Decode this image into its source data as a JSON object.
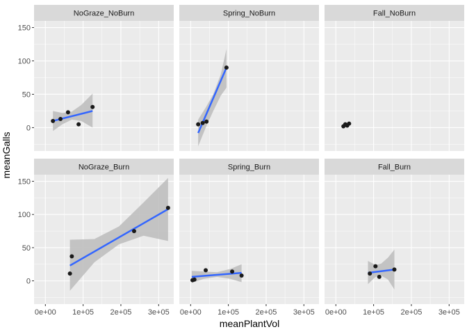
{
  "chart_data": {
    "type": "scatter",
    "facet": "grid",
    "xlabel": "meanPlantVol",
    "ylabel": "meanGalls",
    "xlim": [
      -30000,
      340000
    ],
    "ylim": [
      -35,
      160
    ],
    "x_ticks": [
      0,
      100000,
      200000,
      300000
    ],
    "x_tick_labels": [
      "0e+00",
      "1e+05",
      "2e+05",
      "3e+05"
    ],
    "y_ticks": [
      0,
      50,
      100,
      150
    ],
    "y_tick_labels": [
      "0",
      "50",
      "100",
      "150"
    ],
    "colors": {
      "panel_bg": "#ebebeb",
      "grid": "#ffffff",
      "strip_bg": "#d9d9d9",
      "point": "#1a1a1a",
      "line": "#3366ff",
      "ribbon": "#bfbfbf"
    },
    "panels": [
      {
        "title": "NoGraze_NoBurn",
        "points": [
          [
            20000,
            10
          ],
          [
            40000,
            13
          ],
          [
            60000,
            23
          ],
          [
            88000,
            5
          ],
          [
            125000,
            31
          ]
        ],
        "fit": [
          [
            20000,
            10
          ],
          [
            125000,
            25
          ]
        ],
        "band": [
          [
            20000,
            -5,
            25
          ],
          [
            45000,
            5,
            22
          ],
          [
            70000,
            12,
            24
          ],
          [
            95000,
            10,
            34
          ],
          [
            125000,
            0,
            51
          ]
        ]
      },
      {
        "title": "Spring_NoBurn",
        "points": [
          [
            20000,
            5
          ],
          [
            32000,
            7
          ],
          [
            42000,
            9
          ],
          [
            95000,
            90
          ]
        ],
        "fit": [
          [
            20000,
            -8
          ],
          [
            95000,
            90
          ]
        ],
        "band": [
          [
            20000,
            -28,
            12
          ],
          [
            40000,
            0,
            30
          ],
          [
            60000,
            25,
            50
          ],
          [
            80000,
            48,
            80
          ],
          [
            95000,
            60,
            118
          ]
        ]
      },
      {
        "title": "Fall_NoBurn",
        "points": [
          [
            20000,
            2
          ],
          [
            25000,
            5
          ],
          [
            30000,
            3
          ],
          [
            35000,
            6
          ]
        ],
        "fit": [
          [
            18000,
            1
          ],
          [
            35000,
            5
          ]
        ],
        "band": [
          [
            18000,
            -1,
            3
          ],
          [
            26000,
            1,
            5
          ],
          [
            35000,
            3,
            8
          ]
        ]
      },
      {
        "title": "NoGraze_Burn",
        "points": [
          [
            65000,
            11
          ],
          [
            70000,
            37
          ],
          [
            235000,
            75
          ],
          [
            325000,
            110
          ]
        ],
        "fit": [
          [
            65000,
            23
          ],
          [
            325000,
            108
          ]
        ],
        "band": [
          [
            65000,
            -15,
            62
          ],
          [
            130000,
            28,
            63
          ],
          [
            195000,
            55,
            82
          ],
          [
            260000,
            68,
            118
          ],
          [
            325000,
            60,
            155
          ]
        ]
      },
      {
        "title": "Spring_Burn",
        "points": [
          [
            5000,
            1
          ],
          [
            10000,
            2
          ],
          [
            40000,
            16
          ],
          [
            110000,
            14
          ],
          [
            135000,
            8
          ]
        ],
        "fit": [
          [
            3000,
            6
          ],
          [
            135000,
            12
          ]
        ],
        "band": [
          [
            3000,
            -3,
            15
          ],
          [
            35000,
            3,
            14
          ],
          [
            70000,
            6,
            13
          ],
          [
            105000,
            3,
            18
          ],
          [
            135000,
            -2,
            25
          ]
        ]
      },
      {
        "title": "Fall_Burn",
        "points": [
          [
            90000,
            11
          ],
          [
            105000,
            22
          ],
          [
            115000,
            6
          ],
          [
            155000,
            17
          ]
        ],
        "fit": [
          [
            85000,
            12
          ],
          [
            155000,
            17
          ]
        ],
        "band": [
          [
            85000,
            -5,
            30
          ],
          [
            105000,
            6,
            24
          ],
          [
            120000,
            8,
            26
          ],
          [
            138000,
            2,
            35
          ],
          [
            155000,
            -13,
            47
          ]
        ]
      }
    ]
  }
}
